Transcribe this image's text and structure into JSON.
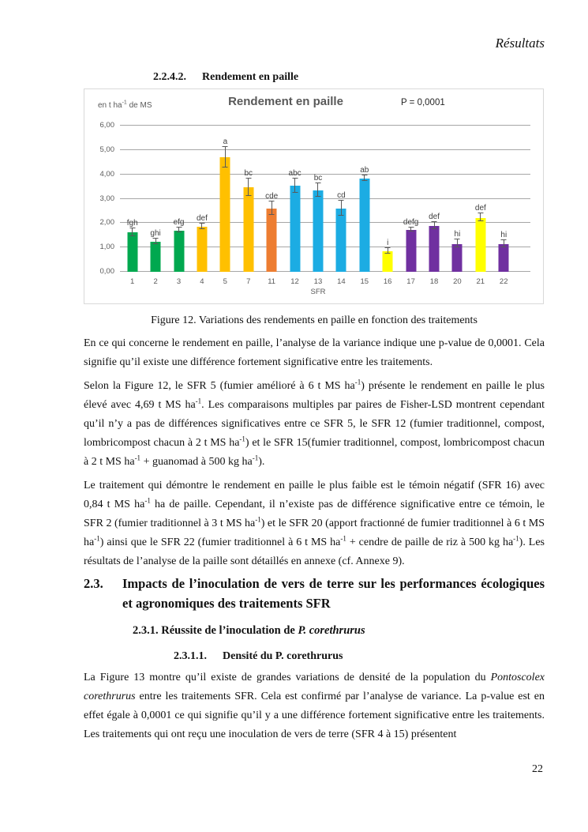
{
  "page": {
    "header_right": "Résultats",
    "page_number": "22"
  },
  "sections": {
    "h2242": {
      "number": "2.2.4.2.",
      "title": "Rendement en paille"
    },
    "figure_caption": "Figure 12. Variations des rendements en paille en fonction des traitements",
    "h23": {
      "number": "2.3.",
      "title": "Impacts de l’inoculation de vers de terre sur les performances écologiques et agronomiques des traitements SFR"
    },
    "h231_rich": [
      {
        "t": "2.3.1. Réussite de l’inoculation de "
      },
      {
        "t": "P. corethrurus",
        "s": "bi"
      }
    ],
    "h2311": {
      "number": "2.3.1.1.",
      "title": "Densité du P. corethrurus"
    }
  },
  "paragraphs": {
    "p1": [
      {
        "t": "En ce qui concerne le rendement en paille, l’analyse de la variance indique une p-value de 0,0001. Cela signifie qu’il existe une différence fortement significative entre les traitements."
      }
    ],
    "p2": [
      {
        "t": "Selon la Figure 12, le SFR 5 (fumier amélioré à 6 t MS ha"
      },
      {
        "t": "-1",
        "s": "sup"
      },
      {
        "t": ") présente le rendement en paille le plus élevé avec 4,69 t MS ha"
      },
      {
        "t": "-1",
        "s": "sup"
      },
      {
        "t": ". Les comparaisons multiples par paires de Fisher-LSD montrent cependant qu’il n’y a pas de différences significatives entre ce SFR 5, le SFR 12 (fumier traditionnel, compost, lombricompost chacun à 2 t MS ha"
      },
      {
        "t": "-1",
        "s": "sup"
      },
      {
        "t": ") et le SFR 15(fumier traditionnel, compost, lombricompost chacun à 2 t MS ha"
      },
      {
        "t": "-1",
        "s": "sup"
      },
      {
        "t": " + guanomad à 500 kg ha"
      },
      {
        "t": "-1",
        "s": "sup"
      },
      {
        "t": ")."
      }
    ],
    "p3": [
      {
        "t": "Le traitement qui démontre le rendement en paille le plus faible est le témoin négatif (SFR 16) avec 0,84 t MS ha"
      },
      {
        "t": "-1",
        "s": "sup"
      },
      {
        "t": " ha de paille. Cependant, il n’existe pas de différence significative entre ce témoin, le SFR 2 (fumier traditionnel à 3 t MS ha"
      },
      {
        "t": "-1",
        "s": "sup"
      },
      {
        "t": ") et le SFR 20 (apport fractionné de fumier traditionnel à 6 t MS ha"
      },
      {
        "t": "-1",
        "s": "sup"
      },
      {
        "t": ") ainsi que le SFR 22 (fumier traditionnel à 6 t MS ha"
      },
      {
        "t": "-1",
        "s": "sup"
      },
      {
        "t": "  + cendre de paille de riz à 500 kg ha"
      },
      {
        "t": "-1",
        "s": "sup"
      },
      {
        "t": "). Les résultats de l’analyse de la paille sont détaillés en annexe (cf. Annexe 9)."
      }
    ],
    "p4": [
      {
        "t": "La Figure 13 montre qu’il existe de grandes variations de densité de la population du "
      },
      {
        "t": "Pontoscolex corethrurus",
        "s": "i"
      },
      {
        "t": " entre les traitements SFR. Cela est confirmé par l’analyse de variance. La p-value est en effet égale à 0,0001 ce qui signifie qu’il y a une différence fortement significative entre les traitements. Les traitements qui ont reçu une inoculation de vers de terre (SFR 4 à 15) présentent"
      }
    ]
  },
  "chart_data": {
    "type": "bar",
    "title": "Rendement en paille",
    "p_value_annotation": "P = 0,0001",
    "y_axis_label_rich": [
      {
        "t": "en t ha"
      },
      {
        "t": "-1",
        "s": "sup"
      },
      {
        "t": " de MS"
      }
    ],
    "xlabel": "SFR",
    "ylim": [
      0,
      6
    ],
    "ytick_step": 1,
    "ytick_labels": [
      "0,00",
      "1,00",
      "2,00",
      "3,00",
      "4,00",
      "5,00",
      "6,00"
    ],
    "grid": true,
    "legend": false,
    "categories": [
      "1",
      "2",
      "3",
      "4",
      "5",
      "7",
      "11",
      "12",
      "13",
      "14",
      "15",
      "16",
      "17",
      "18",
      "20",
      "21",
      "22"
    ],
    "values": [
      1.61,
      1.24,
      1.7,
      1.85,
      4.69,
      3.46,
      2.59,
      3.52,
      3.33,
      2.6,
      3.84,
      0.84,
      1.72,
      1.88,
      1.15,
      2.22,
      1.13
    ],
    "errors": [
      0.15,
      0.09,
      0.07,
      0.09,
      0.4,
      0.35,
      0.26,
      0.27,
      0.26,
      0.29,
      0.1,
      0.09,
      0.05,
      0.13,
      0.16,
      0.14,
      0.12
    ],
    "significance_letters": [
      "fgh",
      "ghi",
      "efg",
      "def",
      "a",
      "bc",
      "cde",
      "abc",
      "bc",
      "cd",
      "ab",
      "i",
      "defg",
      "def",
      "hi",
      "def",
      "hi"
    ],
    "bar_colors": [
      "#00A84F",
      "#00A84F",
      "#00A84F",
      "#FFC000",
      "#FFC000",
      "#FFC000",
      "#ED7D31",
      "#1CACE3",
      "#1CACE3",
      "#1CACE3",
      "#1CACE3",
      "#FFFF00",
      "#7030A0",
      "#7030A0",
      "#7030A0",
      "#FFFF00",
      "#7030A0"
    ],
    "bar_color_legend": {
      "#00A84F": "green",
      "#FFC000": "gold",
      "#ED7D31": "orange",
      "#1CACE3": "blue",
      "#FFFF00": "yellow",
      "#7030A0": "purple"
    }
  }
}
